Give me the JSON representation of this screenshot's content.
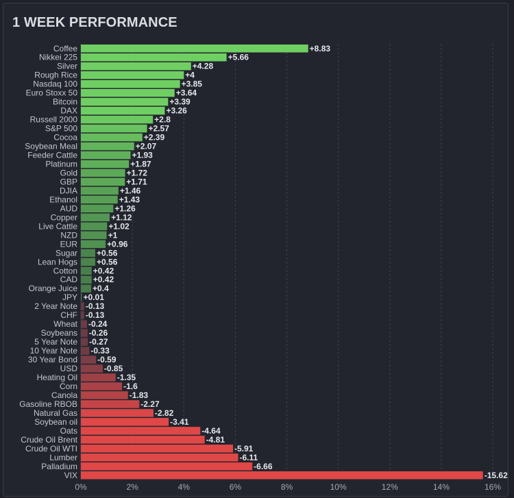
{
  "header": {
    "title": "1 WEEK PERFORMANCE"
  },
  "chart_data": {
    "type": "bar",
    "orientation": "horizontal",
    "title": "1 WEEK PERFORMANCE",
    "xlabel": "",
    "ylabel": "",
    "xlim": [
      0,
      16
    ],
    "x_ticks": [
      "0%",
      "2%",
      "4%",
      "6%",
      "8%",
      "10%",
      "12%",
      "14%",
      "16%"
    ],
    "grid": true,
    "colors": {
      "positive": "#6fcf63",
      "positive_dark": "#3f6b47",
      "negative": "#e04848",
      "negative_dark": "#5a3a45"
    },
    "categories": [
      "Coffee",
      "Nikkei 225",
      "Silver",
      "Rough Rice",
      "Nasdaq 100",
      "Euro Stoxx 50",
      "Bitcoin",
      "DAX",
      "Russell 2000",
      "S&P 500",
      "Cocoa",
      "Soybean Meal",
      "Feeder Cattle",
      "Platinum",
      "Gold",
      "GBP",
      "DJIA",
      "Ethanol",
      "AUD",
      "Copper",
      "Live Cattle",
      "NZD",
      "EUR",
      "Sugar",
      "Lean Hogs",
      "Cotton",
      "CAD",
      "Orange Juice",
      "JPY",
      "2 Year Note",
      "CHF",
      "Wheat",
      "Soybeans",
      "5 Year Note",
      "10 Year Note",
      "30 Year Bond",
      "USD",
      "Heating Oil",
      "Corn",
      "Canola",
      "Gasoline RBOB",
      "Natural Gas",
      "Soybean oil",
      "Oats",
      "Crude Oil Brent",
      "Crude Oil WTI",
      "Lumber",
      "Palladium",
      "VIX"
    ],
    "values": [
      8.83,
      5.66,
      4.28,
      4,
      3.85,
      3.64,
      3.39,
      3.26,
      2.8,
      2.57,
      2.39,
      2.07,
      1.93,
      1.87,
      1.72,
      1.71,
      1.46,
      1.43,
      1.26,
      1.12,
      1.02,
      1,
      0.96,
      0.56,
      0.56,
      0.42,
      0.42,
      0.4,
      0.01,
      -0.13,
      -0.13,
      -0.24,
      -0.26,
      -0.27,
      -0.33,
      -0.59,
      -0.85,
      -1.35,
      -1.6,
      -1.83,
      -2.27,
      -2.82,
      -3.41,
      -4.64,
      -4.81,
      -5.91,
      -6.11,
      -6.66,
      -15.62
    ],
    "value_labels": [
      "+8.83",
      "+5.66",
      "+4.28",
      "+4",
      "+3.85",
      "+3.64",
      "+3.39",
      "+3.26",
      "+2.8",
      "+2.57",
      "+2.39",
      "+2.07",
      "+1.93",
      "+1.87",
      "+1.72",
      "+1.71",
      "+1.46",
      "+1.43",
      "+1.26",
      "+1.12",
      "+1.02",
      "+1",
      "+0.96",
      "+0.56",
      "+0.56",
      "+0.42",
      "+0.42",
      "+0.4",
      "+0.01",
      "-0.13",
      "-0.13",
      "-0.24",
      "-0.26",
      "-0.27",
      "-0.33",
      "-0.59",
      "-0.85",
      "-1.35",
      "-1.6",
      "-1.83",
      "-2.27",
      "-2.82",
      "-3.41",
      "-4.64",
      "-4.81",
      "-5.91",
      "-6.11",
      "-6.66",
      "-15.62"
    ]
  }
}
